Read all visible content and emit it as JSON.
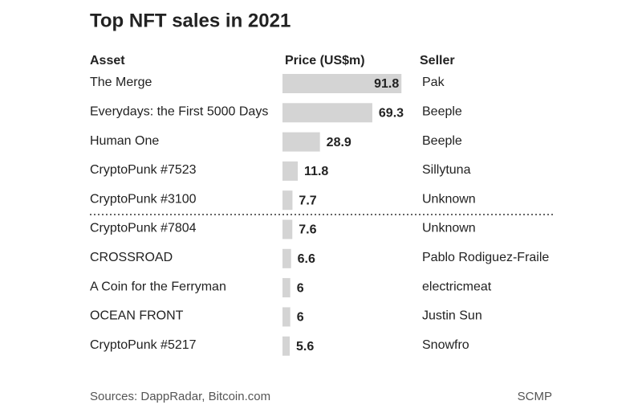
{
  "chart_data": {
    "type": "bar",
    "orientation": "horizontal",
    "title": "Top NFT sales in 2021",
    "category_header": "Asset",
    "value_header": "Price (US$m)",
    "seller_header": "Seller",
    "categories": [
      "The Merge",
      "Everydays: the First 5000 Days",
      "Human One",
      "CryptoPunk #7523",
      "CryptoPunk #3100",
      "CryptoPunk #7804",
      "CROSSROAD",
      "A Coin for the Ferryman",
      "OCEAN FRONT",
      "CryptoPunk #5217"
    ],
    "values": [
      91.8,
      69.3,
      28.9,
      11.8,
      7.7,
      7.6,
      6.6,
      6,
      6,
      5.6
    ],
    "sellers": [
      "Pak",
      "Beeple",
      "Beeple",
      "Sillytuna",
      "Unknown",
      "Unknown",
      "Pablo Rodiguez-Fraile",
      "electricmeat",
      "Justin Sun",
      "Snowfro"
    ],
    "color": "#d4d4d4",
    "source": "Sources: DappRadar, Bitcoin.com",
    "credit": "SCMP"
  }
}
